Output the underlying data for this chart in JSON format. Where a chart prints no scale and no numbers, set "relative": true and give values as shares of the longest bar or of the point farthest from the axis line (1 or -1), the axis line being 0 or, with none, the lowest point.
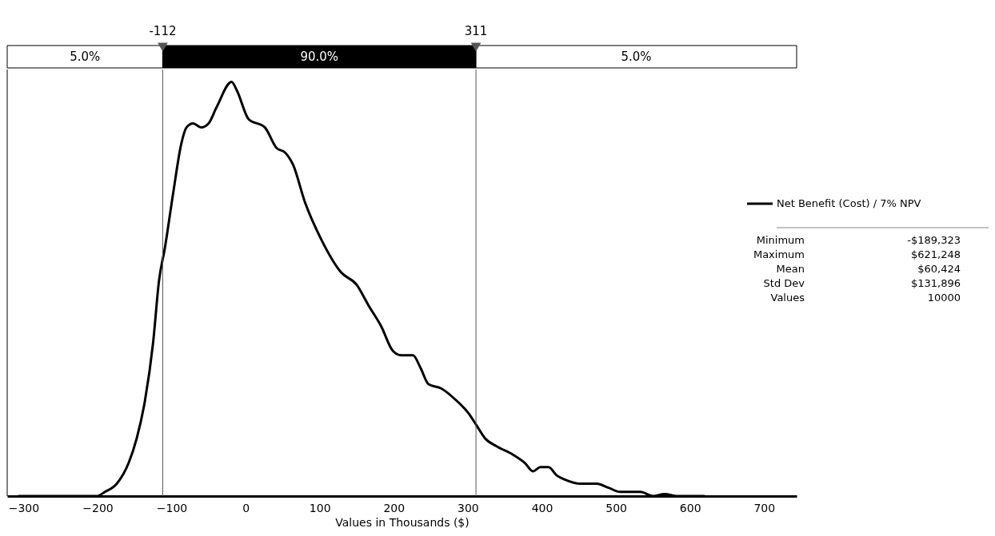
{
  "chart_data": {
    "type": "line",
    "relative": true,
    "xlabel": "Values in Thousands ($)",
    "xlim": [
      -322,
      744
    ],
    "xticks": [
      -300,
      -200,
      -100,
      0,
      100,
      200,
      300,
      400,
      500,
      600,
      700
    ],
    "x": [
      -307,
      -201,
      -190,
      -174,
      -158,
      -147,
      -136,
      -125,
      -117,
      -109,
      -98,
      -87,
      -80,
      -71,
      -60,
      -50,
      -39,
      -19,
      -12,
      4,
      26,
      42,
      53,
      64,
      80,
      102,
      129,
      150,
      166,
      183,
      199,
      210,
      226,
      236,
      247,
      264,
      285,
      301,
      312,
      323,
      339,
      361,
      377,
      388,
      398,
      409,
      420,
      431,
      452,
      474,
      490,
      506,
      523,
      533,
      550,
      566,
      582,
      620
    ],
    "series": [
      {
        "name": "Net Benefit (Cost) / 7% NPV",
        "color": "#000000",
        "values": [
          0,
          0,
          0.01,
          0.03,
          0.08,
          0.14,
          0.23,
          0.37,
          0.52,
          0.6,
          0.73,
          0.85,
          0.89,
          0.9,
          0.89,
          0.9,
          0.94,
          1,
          0.98,
          0.91,
          0.89,
          0.84,
          0.83,
          0.8,
          0.71,
          0.62,
          0.54,
          0.51,
          0.46,
          0.41,
          0.35,
          0.34,
          0.34,
          0.31,
          0.27,
          0.26,
          0.23,
          0.2,
          0.17,
          0.14,
          0.12,
          0.1,
          0.08,
          0.06,
          0.07,
          0.07,
          0.05,
          0.04,
          0.03,
          0.03,
          0.02,
          0.01,
          0.01,
          0.01,
          0,
          0.005,
          0,
          0
        ]
      }
    ],
    "ref_lines": [
      {
        "axis": "x",
        "value": -112,
        "label": "-112"
      },
      {
        "axis": "x",
        "value": 311,
        "label": "311"
      }
    ],
    "annotations": [
      "5.0%",
      "90.0%",
      "5.0%",
      "Minimum",
      "-$189,323",
      "Maximum",
      "$621,248",
      "Mean",
      "$60,424",
      "Std Dev",
      "$131,896",
      "Values",
      "10000"
    ],
    "legend": "right",
    "grid": false
  }
}
